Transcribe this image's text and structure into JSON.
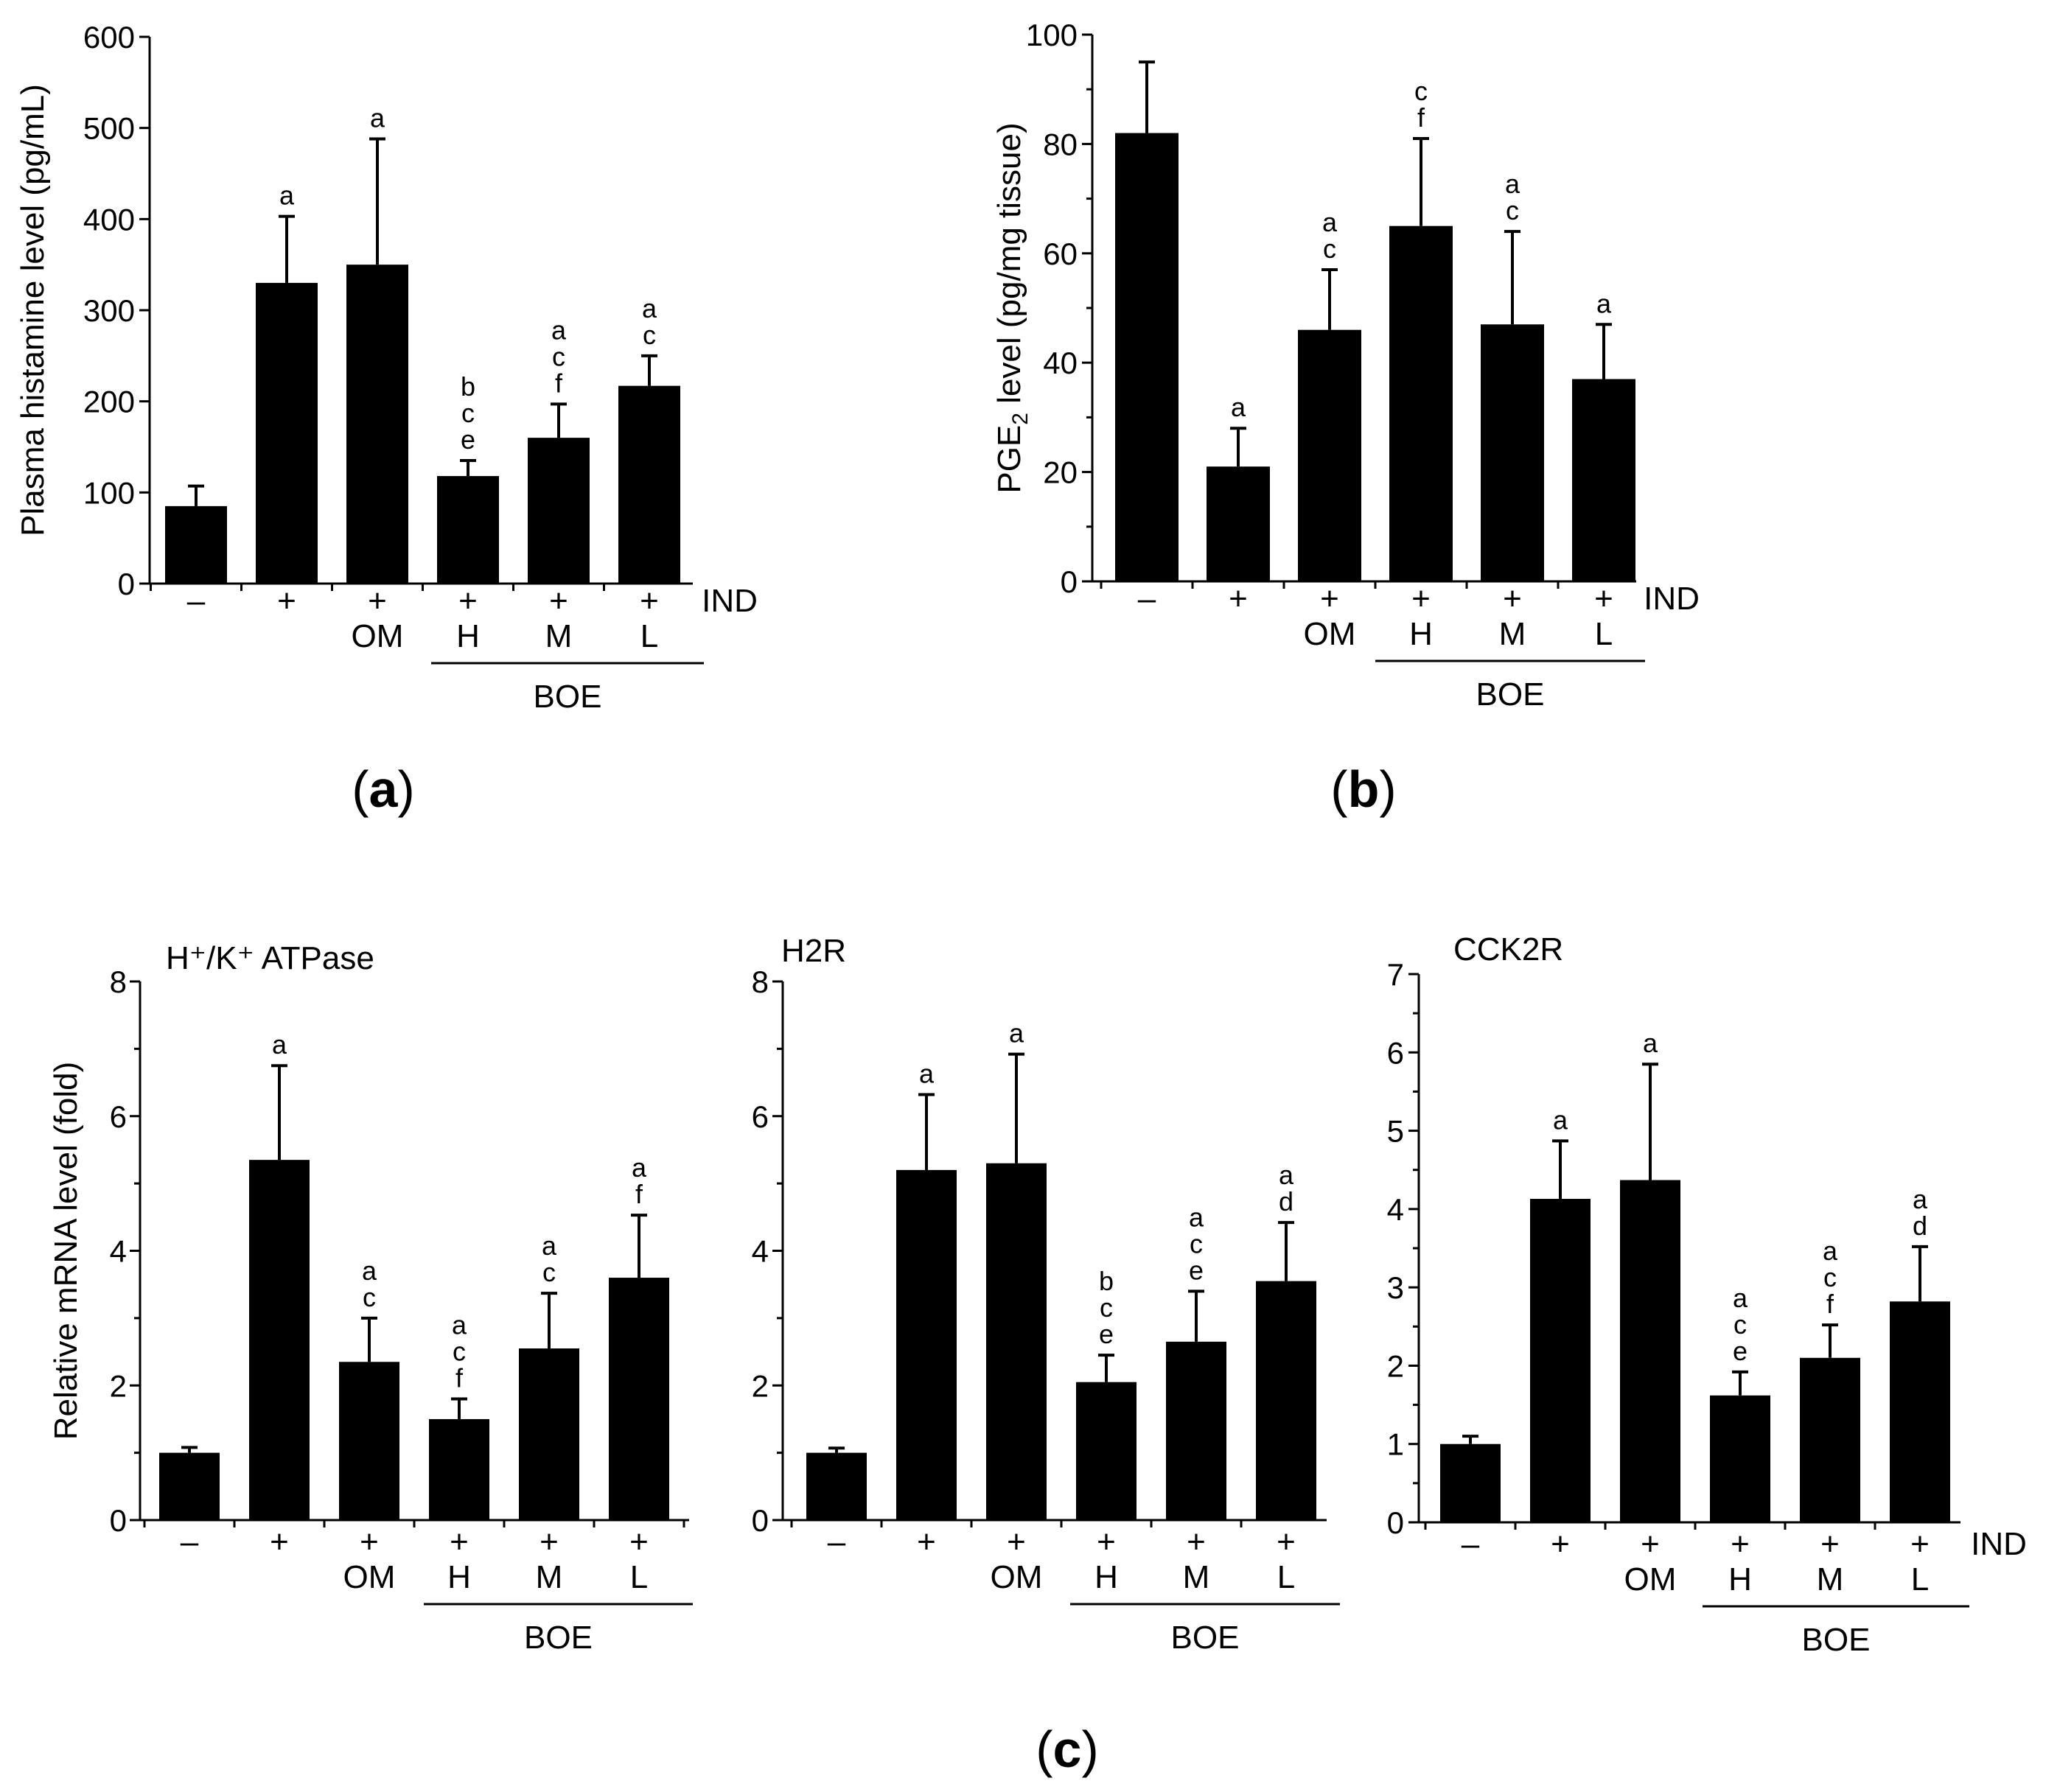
{
  "figure": {
    "panel_labels": [
      {
        "open": "(",
        "letter": "a",
        "close": ")"
      },
      {
        "open": "(",
        "letter": "b",
        "close": ")"
      },
      {
        "open": "(",
        "letter": "c",
        "close": ")"
      }
    ]
  },
  "chart_data": [
    {
      "id": "a",
      "type": "bar",
      "title": "",
      "ylabel": "Plasma histamine level (pg/mL)",
      "ylabel_sub": "",
      "ylabel_after": "",
      "ylim": [
        0,
        600
      ],
      "yticks": [
        0,
        100,
        200,
        300,
        400,
        500,
        600
      ],
      "minor_ticks": false,
      "row1": [
        "–",
        "+",
        "+",
        "+",
        "+",
        "+"
      ],
      "row1_trailer": "IND",
      "row2": [
        "",
        "",
        "OM",
        "H",
        "M",
        "L"
      ],
      "group_label": "BOE",
      "values": [
        85,
        330,
        350,
        118,
        160,
        217
      ],
      "errors": [
        22,
        73,
        138,
        17,
        37,
        33
      ],
      "sig": [
        "",
        "a",
        "a",
        "b c e",
        "a c f",
        "a c"
      ]
    },
    {
      "id": "b",
      "type": "bar",
      "title": "",
      "ylabel": "PGE",
      "ylabel_sub": "2",
      "ylabel_after": " level (pg/mg tissue)",
      "ylim": [
        0,
        100
      ],
      "yticks": [
        0,
        20,
        40,
        60,
        80,
        100
      ],
      "minor_ticks": true,
      "row1": [
        "–",
        "+",
        "+",
        "+",
        "+",
        "+"
      ],
      "row1_trailer": "IND",
      "row2": [
        "",
        "",
        "OM",
        "H",
        "M",
        "L"
      ],
      "group_label": "BOE",
      "values": [
        82,
        21,
        46,
        65,
        47,
        37
      ],
      "errors": [
        13,
        7,
        11,
        16,
        17,
        10
      ],
      "sig": [
        "",
        "a",
        "a c",
        "c f",
        "a c",
        "a"
      ]
    },
    {
      "id": "c1",
      "type": "bar",
      "title": "H⁺/K⁺ ATPase",
      "ylabel": "Relative mRNA level (fold)",
      "ylabel_sub": "",
      "ylabel_after": "",
      "ylim": [
        0,
        8
      ],
      "yticks": [
        0,
        2,
        4,
        6,
        8
      ],
      "minor_ticks": true,
      "row1": [
        "–",
        "+",
        "+",
        "+",
        "+",
        "+"
      ],
      "row1_trailer": "",
      "row2": [
        "",
        "",
        "OM",
        "H",
        "M",
        "L"
      ],
      "group_label": "BOE",
      "values": [
        1.0,
        5.35,
        2.35,
        1.5,
        2.55,
        3.6
      ],
      "errors": [
        0.08,
        1.4,
        0.65,
        0.3,
        0.82,
        0.93
      ],
      "sig": [
        "",
        "a",
        "a c",
        "a c f",
        "a c",
        "a f"
      ]
    },
    {
      "id": "c2",
      "type": "bar",
      "title": "H2R",
      "ylabel": "",
      "ylabel_sub": "",
      "ylabel_after": "",
      "ylim": [
        0,
        8
      ],
      "yticks": [
        0,
        2,
        4,
        6,
        8
      ],
      "minor_ticks": true,
      "row1": [
        "–",
        "+",
        "+",
        "+",
        "+",
        "+"
      ],
      "row1_trailer": "",
      "row2": [
        "",
        "",
        "OM",
        "H",
        "M",
        "L"
      ],
      "group_label": "BOE",
      "values": [
        1.0,
        5.2,
        5.3,
        2.05,
        2.65,
        3.55
      ],
      "errors": [
        0.07,
        1.12,
        1.62,
        0.4,
        0.75,
        0.87
      ],
      "sig": [
        "",
        "a",
        "a",
        "b c e",
        "a c e",
        "a d"
      ]
    },
    {
      "id": "c3",
      "type": "bar",
      "title": "CCK2R",
      "ylabel": "",
      "ylabel_sub": "",
      "ylabel_after": "",
      "ylim": [
        0,
        7
      ],
      "yticks": [
        0,
        1,
        2,
        3,
        4,
        5,
        6,
        7
      ],
      "minor_ticks": true,
      "row1": [
        "–",
        "+",
        "+",
        "+",
        "+",
        "+"
      ],
      "row1_trailer": "IND",
      "row2": [
        "",
        "",
        "OM",
        "H",
        "M",
        "L"
      ],
      "group_label": "BOE",
      "values": [
        1.0,
        4.13,
        4.37,
        1.62,
        2.1,
        2.82
      ],
      "errors": [
        0.1,
        0.74,
        1.48,
        0.3,
        0.42,
        0.7
      ],
      "sig": [
        "",
        "a",
        "a",
        "a c e",
        "a c f",
        "a d"
      ]
    }
  ]
}
